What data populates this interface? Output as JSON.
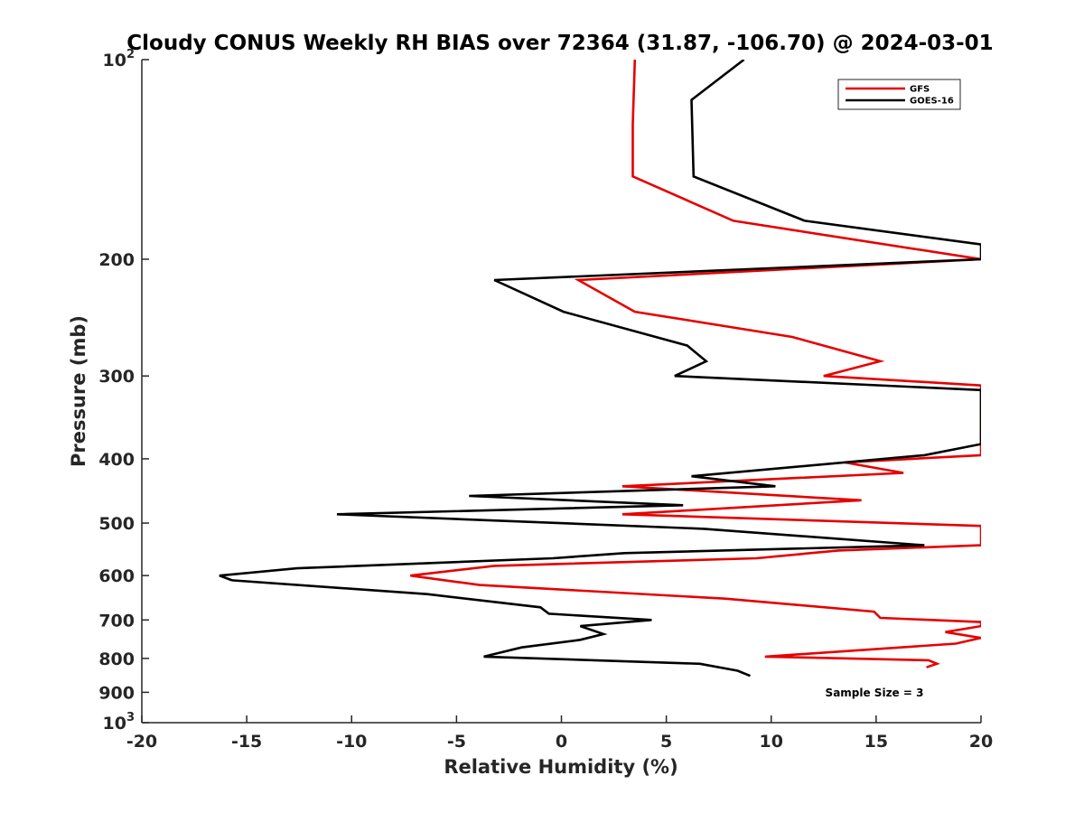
{
  "chart_data": {
    "type": "line",
    "title": "Cloudy CONUS Weekly RH BIAS over 72364 (31.87, -106.70) @ 2024-03-01",
    "xlabel": "Relative Humidity (%)",
    "ylabel": "Pressure (mb)",
    "xlim": [
      -20,
      20
    ],
    "ylim": [
      100,
      1000
    ],
    "y_scale": "log",
    "y_reversed": true,
    "x_ticks": [
      "-20",
      "-15",
      "-10",
      "-5",
      "0",
      "5",
      "10",
      "15",
      "20"
    ],
    "y_ticks": [
      {
        "value": 100,
        "base": "10",
        "exp": "2"
      },
      {
        "value": 200,
        "label": "200"
      },
      {
        "value": 300,
        "label": "300"
      },
      {
        "value": 400,
        "label": "400"
      },
      {
        "value": 500,
        "label": "500"
      },
      {
        "value": 600,
        "label": "600"
      },
      {
        "value": 700,
        "label": "700"
      },
      {
        "value": 800,
        "label": "800"
      },
      {
        "value": 900,
        "label": "900"
      },
      {
        "value": 1000,
        "base": "10",
        "exp": "3"
      }
    ],
    "grid": false,
    "legend_position": "top-right",
    "annotation": "Sample Size = 3",
    "series": [
      {
        "name": "GFS",
        "color": "#e60000",
        "points": [
          [
            3.5,
            100
          ],
          [
            3.4,
            125
          ],
          [
            3.4,
            150
          ],
          [
            8.2,
            175
          ],
          [
            20,
            200
          ],
          [
            20,
            200
          ],
          [
            0.8,
            215
          ],
          [
            3.5,
            240
          ],
          [
            11,
            262
          ],
          [
            15.2,
            285
          ],
          [
            12.5,
            300
          ],
          [
            20,
            310
          ],
          [
            20,
            310
          ],
          [
            20,
            395
          ],
          [
            13.5,
            405
          ],
          [
            16.3,
            420
          ],
          [
            2.9,
            440
          ],
          [
            14.3,
            462
          ],
          [
            2.9,
            485
          ],
          [
            20,
            505
          ],
          [
            20,
            540
          ],
          [
            13.2,
            550
          ],
          [
            9.3,
            565
          ],
          [
            -3.2,
            580
          ],
          [
            -7.2,
            600
          ],
          [
            -3.9,
            620
          ],
          [
            7.8,
            650
          ],
          [
            14.9,
            680
          ],
          [
            15.2,
            695
          ],
          [
            20,
            705
          ],
          [
            20,
            715
          ],
          [
            18.3,
            730
          ],
          [
            20,
            745
          ],
          [
            18.8,
            760
          ],
          [
            9.7,
            795
          ],
          [
            17.5,
            805
          ],
          [
            17.9,
            815
          ],
          [
            17.4,
            825
          ]
        ]
      },
      {
        "name": "GOES-16",
        "color": "#000000",
        "points": [
          [
            8.7,
            100
          ],
          [
            6.2,
            115
          ],
          [
            6.3,
            150
          ],
          [
            11.6,
            175
          ],
          [
            20,
            190
          ],
          [
            20,
            200
          ],
          [
            -3.2,
            215
          ],
          [
            0.1,
            240
          ],
          [
            6.0,
            270
          ],
          [
            6.9,
            285
          ],
          [
            5.4,
            300
          ],
          [
            20,
            315
          ],
          [
            20,
            380
          ],
          [
            17.3,
            395
          ],
          [
            6.2,
            425
          ],
          [
            10.2,
            440
          ],
          [
            -4.4,
            455
          ],
          [
            5.8,
            470
          ],
          [
            -10.7,
            485
          ],
          [
            6.8,
            510
          ],
          [
            17.3,
            540
          ],
          [
            3.0,
            555
          ],
          [
            -0.4,
            565
          ],
          [
            -12.6,
            585
          ],
          [
            -16.3,
            600
          ],
          [
            -15.7,
            610
          ],
          [
            -6.4,
            640
          ],
          [
            -1.0,
            670
          ],
          [
            -0.6,
            685
          ],
          [
            4.3,
            700
          ],
          [
            0.9,
            715
          ],
          [
            2.0,
            735
          ],
          [
            0.9,
            750
          ],
          [
            -1.9,
            770
          ],
          [
            -3.7,
            795
          ],
          [
            6.6,
            815
          ],
          [
            8.4,
            835
          ],
          [
            9.0,
            850
          ]
        ]
      }
    ]
  }
}
